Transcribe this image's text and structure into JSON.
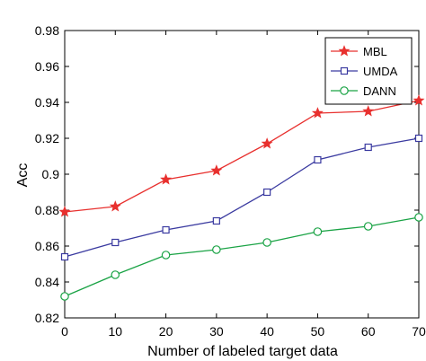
{
  "chart_data": {
    "type": "line",
    "xlabel": "Number of labeled target data",
    "ylabel": "Acc",
    "x": [
      0,
      10,
      20,
      30,
      40,
      50,
      60,
      70
    ],
    "xlim": [
      0,
      70
    ],
    "ylim": [
      0.82,
      0.98
    ],
    "xticks": [
      "0",
      "10",
      "20",
      "30",
      "40",
      "50",
      "60",
      "70"
    ],
    "yticks": [
      "0.82",
      "0.84",
      "0.86",
      "0.88",
      "0.9",
      "0.92",
      "0.94",
      "0.96",
      "0.98"
    ],
    "grid": false,
    "legend_position": "top-right",
    "series": [
      {
        "name": "MBL",
        "color": "#e8302e",
        "marker": "star",
        "values": [
          0.879,
          0.882,
          0.897,
          0.902,
          0.917,
          0.934,
          0.935,
          0.941
        ]
      },
      {
        "name": "UMDA",
        "color": "#3a3aa0",
        "marker": "square",
        "values": [
          0.854,
          0.862,
          0.869,
          0.874,
          0.89,
          0.908,
          0.915,
          0.92
        ]
      },
      {
        "name": "DANN",
        "color": "#1aa345",
        "marker": "circle",
        "values": [
          0.832,
          0.844,
          0.855,
          0.858,
          0.862,
          0.868,
          0.871,
          0.876
        ]
      }
    ]
  }
}
